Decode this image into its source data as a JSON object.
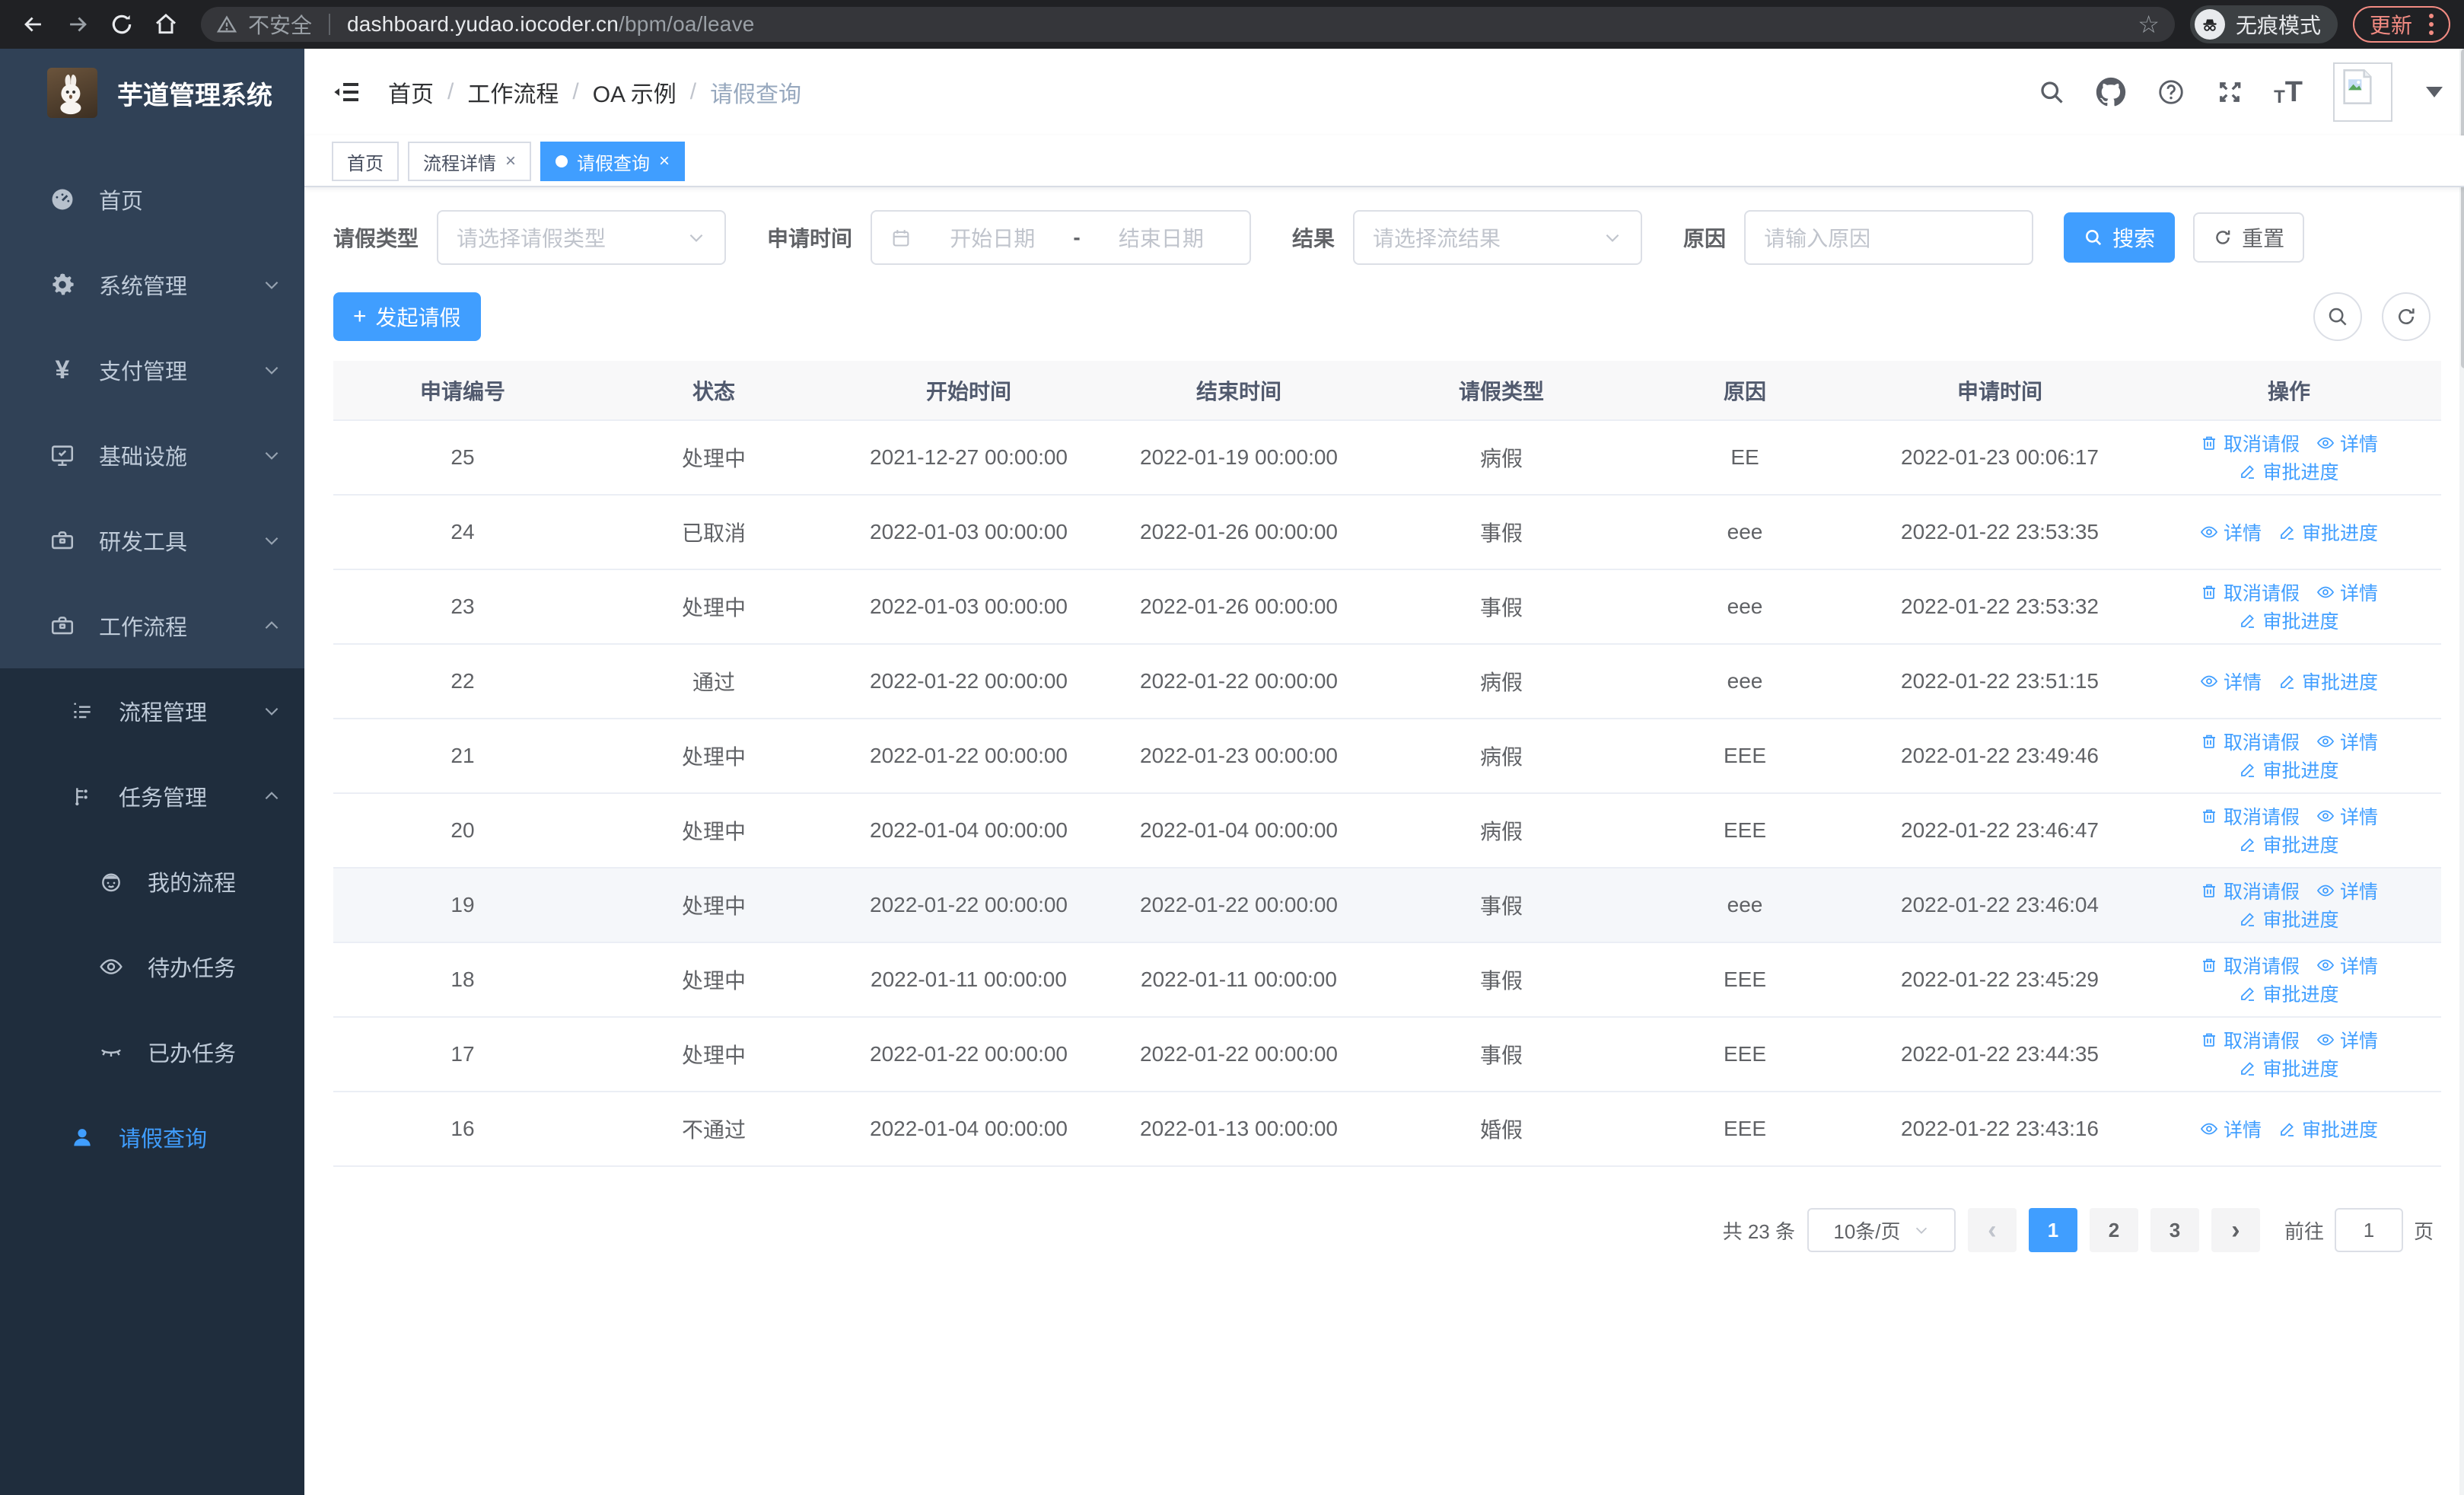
{
  "browser": {
    "not_secure_label": "不安全",
    "url_domain": "dashboard.yudao.iocoder.cn",
    "url_path": "/bpm/oa/leave",
    "incognito_label": "无痕模式",
    "update_label": "更新"
  },
  "colors": {
    "accent": "#409eff",
    "sidebar_bg": "#304156",
    "submenu_bg": "#1f2d3d",
    "chrome_bg": "#202124",
    "update_accent": "#f28b82",
    "table_header_bg": "#f8f8f9",
    "hover_row_bg": "#f5f7fa"
  },
  "sidebar": {
    "logo_title": "芋道管理系统",
    "top_items": [
      {
        "label": "首页",
        "icon": "dashboard-icon"
      },
      {
        "label": "系统管理",
        "icon": "gear-icon",
        "expandable": true
      },
      {
        "label": "支付管理",
        "icon": "yen-icon",
        "expandable": true
      },
      {
        "label": "基础设施",
        "icon": "monitor-icon",
        "expandable": true
      },
      {
        "label": "研发工具",
        "icon": "briefcase-icon",
        "expandable": true
      },
      {
        "label": "工作流程",
        "icon": "briefcase-icon",
        "expandable": true,
        "expanded": true
      }
    ],
    "workflow_items": [
      {
        "label": "流程管理",
        "icon": "list-icon",
        "expandable": true
      },
      {
        "label": "任务管理",
        "icon": "tree-icon",
        "expandable": true,
        "expanded": true
      }
    ],
    "task_items": [
      {
        "label": "我的流程",
        "icon": "robot-icon"
      },
      {
        "label": "待办任务",
        "icon": "eye-open-icon"
      },
      {
        "label": "已办任务",
        "icon": "eye-closed-icon"
      }
    ],
    "active_item": {
      "label": "请假查询",
      "icon": "user-icon"
    }
  },
  "header": {
    "breadcrumbs": [
      "首页",
      "工作流程",
      "OA 示例",
      "请假查询"
    ]
  },
  "tabs": {
    "items": [
      {
        "label": "首页",
        "closable": false,
        "active": false
      },
      {
        "label": "流程详情",
        "closable": true,
        "active": false
      },
      {
        "label": "请假查询",
        "closable": true,
        "active": true
      }
    ],
    "close_glyph": "×"
  },
  "filters": {
    "leave_type_label": "请假类型",
    "leave_type_placeholder": "请选择请假类型",
    "apply_time_label": "申请时间",
    "start_date_placeholder": "开始日期",
    "range_separator": "-",
    "end_date_placeholder": "结束日期",
    "result_label": "结果",
    "result_placeholder": "请选择流结果",
    "reason_label": "原因",
    "reason_placeholder": "请输入原因",
    "search_label": "搜索",
    "reset_label": "重置"
  },
  "toolbar": {
    "create_label": "发起请假",
    "plus_glyph": "+"
  },
  "table": {
    "columns": [
      "申请编号",
      "状态",
      "开始时间",
      "结束时间",
      "请假类型",
      "原因",
      "申请时间",
      "操作"
    ],
    "action_labels": {
      "cancel": "取消请假",
      "detail": "详情",
      "progress": "审批进度"
    },
    "rows": [
      {
        "id": "25",
        "status": "处理中",
        "start_time": "2021-12-27 00:00:00",
        "end_time": "2022-01-19 00:00:00",
        "leave_type": "病假",
        "reason": "EE",
        "apply_time": "2022-01-23 00:06:17",
        "actions": [
          "cancel",
          "detail",
          "progress"
        ],
        "highlighted": false
      },
      {
        "id": "24",
        "status": "已取消",
        "start_time": "2022-01-03 00:00:00",
        "end_time": "2022-01-26 00:00:00",
        "leave_type": "事假",
        "reason": "eee",
        "apply_time": "2022-01-22 23:53:35",
        "actions": [
          "detail",
          "progress"
        ],
        "highlighted": false
      },
      {
        "id": "23",
        "status": "处理中",
        "start_time": "2022-01-03 00:00:00",
        "end_time": "2022-01-26 00:00:00",
        "leave_type": "事假",
        "reason": "eee",
        "apply_time": "2022-01-22 23:53:32",
        "actions": [
          "cancel",
          "detail",
          "progress"
        ],
        "highlighted": false
      },
      {
        "id": "22",
        "status": "通过",
        "start_time": "2022-01-22 00:00:00",
        "end_time": "2022-01-22 00:00:00",
        "leave_type": "病假",
        "reason": "eee",
        "apply_time": "2022-01-22 23:51:15",
        "actions": [
          "detail",
          "progress"
        ],
        "highlighted": false
      },
      {
        "id": "21",
        "status": "处理中",
        "start_time": "2022-01-22 00:00:00",
        "end_time": "2022-01-23 00:00:00",
        "leave_type": "病假",
        "reason": "EEE",
        "apply_time": "2022-01-22 23:49:46",
        "actions": [
          "cancel",
          "detail",
          "progress"
        ],
        "highlighted": false
      },
      {
        "id": "20",
        "status": "处理中",
        "start_time": "2022-01-04 00:00:00",
        "end_time": "2022-01-04 00:00:00",
        "leave_type": "病假",
        "reason": "EEE",
        "apply_time": "2022-01-22 23:46:47",
        "actions": [
          "cancel",
          "detail",
          "progress"
        ],
        "highlighted": false
      },
      {
        "id": "19",
        "status": "处理中",
        "start_time": "2022-01-22 00:00:00",
        "end_time": "2022-01-22 00:00:00",
        "leave_type": "事假",
        "reason": "eee",
        "apply_time": "2022-01-22 23:46:04",
        "actions": [
          "cancel",
          "detail",
          "progress"
        ],
        "highlighted": true
      },
      {
        "id": "18",
        "status": "处理中",
        "start_time": "2022-01-11 00:00:00",
        "end_time": "2022-01-11 00:00:00",
        "leave_type": "事假",
        "reason": "EEE",
        "apply_time": "2022-01-22 23:45:29",
        "actions": [
          "cancel",
          "detail",
          "progress"
        ],
        "highlighted": false
      },
      {
        "id": "17",
        "status": "处理中",
        "start_time": "2022-01-22 00:00:00",
        "end_time": "2022-01-22 00:00:00",
        "leave_type": "事假",
        "reason": "EEE",
        "apply_time": "2022-01-22 23:44:35",
        "actions": [
          "cancel",
          "detail",
          "progress"
        ],
        "highlighted": false
      },
      {
        "id": "16",
        "status": "不通过",
        "start_time": "2022-01-04 00:00:00",
        "end_time": "2022-01-13 00:00:00",
        "leave_type": "婚假",
        "reason": "EEE",
        "apply_time": "2022-01-22 23:43:16",
        "actions": [
          "detail",
          "progress"
        ],
        "highlighted": false
      }
    ]
  },
  "pagination": {
    "total": "共 23 条",
    "page_size": "10条/页",
    "prev_glyph": "‹",
    "next_glyph": "›",
    "pages": [
      "1",
      "2",
      "3"
    ],
    "active_page": "1",
    "goto_label": "前往",
    "goto_value": "1",
    "unit_label": "页"
  }
}
